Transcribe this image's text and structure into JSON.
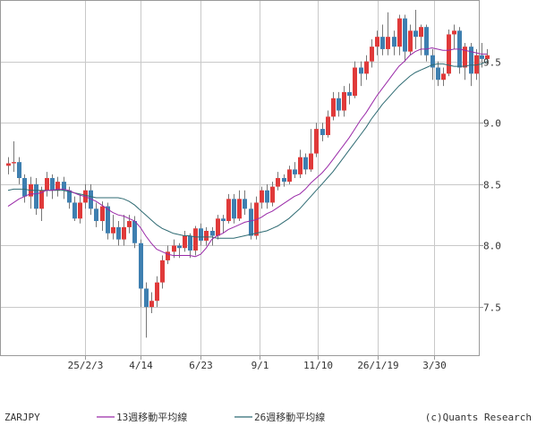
{
  "chart_data": {
    "type": "candlestick",
    "symbol": "ZARJPY",
    "source": "(c)Quants Research",
    "x_tick_labels": [
      "25/2/3",
      "4/14",
      "6/23",
      "9/1",
      "11/10",
      "26/1/19",
      "3/30"
    ],
    "y_ticks": [
      7.5,
      8.0,
      8.5,
      9.0,
      9.5
    ],
    "y_tick_labels": [
      "7.5",
      "8.0",
      "8.5",
      "9.0",
      "9.5"
    ],
    "ylim": [
      7.1,
      10.0
    ],
    "grid": true,
    "colors": {
      "up": "#e03a3a",
      "down": "#3e7fb0",
      "wick": "#777777",
      "ma13": "#9a2aa8",
      "ma26": "#2f6b73",
      "grid": "#c9c9c9",
      "axis": "#9a9a9a"
    },
    "legend": [
      {
        "label": "13週移動平均線",
        "color": "#9a2aa8"
      },
      {
        "label": "26週移動平均線",
        "color": "#2f6b73"
      }
    ],
    "candles": [
      [
        8.65,
        8.67,
        8.58,
        8.72
      ],
      [
        8.67,
        8.68,
        8.6,
        8.85
      ],
      [
        8.68,
        8.55,
        8.5,
        8.72
      ],
      [
        8.55,
        8.4,
        8.35,
        8.58
      ],
      [
        8.4,
        8.5,
        8.3,
        8.56
      ],
      [
        8.5,
        8.3,
        8.25,
        8.55
      ],
      [
        8.3,
        8.45,
        8.2,
        8.48
      ],
      [
        8.45,
        8.55,
        8.4,
        8.6
      ],
      [
        8.55,
        8.45,
        8.38,
        8.58
      ],
      [
        8.45,
        8.52,
        8.4,
        8.56
      ],
      [
        8.52,
        8.45,
        8.38,
        8.56
      ],
      [
        8.45,
        8.35,
        8.3,
        8.48
      ],
      [
        8.35,
        8.22,
        8.2,
        8.4
      ],
      [
        8.22,
        8.35,
        8.18,
        8.42
      ],
      [
        8.35,
        8.45,
        8.3,
        8.5
      ],
      [
        8.45,
        8.3,
        8.25,
        8.5
      ],
      [
        8.3,
        8.2,
        8.15,
        8.35
      ],
      [
        8.2,
        8.32,
        8.12,
        8.36
      ],
      [
        8.32,
        8.1,
        8.05,
        8.35
      ],
      [
        8.1,
        8.15,
        8.05,
        8.25
      ],
      [
        8.15,
        8.05,
        8.0,
        8.2
      ],
      [
        8.05,
        8.15,
        8.0,
        8.25
      ],
      [
        8.15,
        8.2,
        8.1,
        8.25
      ],
      [
        8.2,
        8.02,
        7.98,
        8.24
      ],
      [
        8.02,
        7.65,
        7.5,
        8.05
      ],
      [
        7.65,
        7.5,
        7.25,
        7.7
      ],
      [
        7.5,
        7.55,
        7.45,
        7.62
      ],
      [
        7.55,
        7.7,
        7.5,
        7.75
      ],
      [
        7.7,
        7.88,
        7.65,
        7.92
      ],
      [
        7.88,
        7.95,
        7.85,
        8.0
      ],
      [
        7.95,
        8.0,
        7.9,
        8.05
      ],
      [
        8.0,
        7.98,
        7.9,
        8.02
      ],
      [
        7.98,
        8.08,
        7.95,
        8.12
      ],
      [
        8.08,
        7.96,
        7.9,
        8.1
      ],
      [
        7.96,
        8.14,
        7.92,
        8.16
      ],
      [
        8.14,
        8.04,
        8.0,
        8.18
      ],
      [
        8.04,
        8.12,
        8.0,
        8.15
      ],
      [
        8.12,
        8.08,
        8.0,
        8.15
      ],
      [
        8.08,
        8.22,
        8.05,
        8.25
      ],
      [
        8.22,
        8.2,
        8.1,
        8.25
      ],
      [
        8.2,
        8.38,
        8.18,
        8.42
      ],
      [
        8.38,
        8.22,
        8.18,
        8.42
      ],
      [
        8.22,
        8.38,
        8.2,
        8.45
      ],
      [
        8.38,
        8.3,
        8.25,
        8.45
      ],
      [
        8.3,
        8.08,
        8.05,
        8.35
      ],
      [
        8.08,
        8.35,
        8.05,
        8.4
      ],
      [
        8.35,
        8.45,
        8.3,
        8.48
      ],
      [
        8.45,
        8.35,
        8.3,
        8.5
      ],
      [
        8.35,
        8.48,
        8.32,
        8.52
      ],
      [
        8.48,
        8.55,
        8.45,
        8.6
      ],
      [
        8.55,
        8.52,
        8.48,
        8.58
      ],
      [
        8.52,
        8.62,
        8.5,
        8.65
      ],
      [
        8.62,
        8.58,
        8.55,
        8.68
      ],
      [
        8.58,
        8.72,
        8.55,
        8.78
      ],
      [
        8.72,
        8.62,
        8.58,
        8.75
      ],
      [
        8.62,
        8.75,
        8.6,
        8.95
      ],
      [
        8.75,
        8.95,
        8.72,
        9.0
      ],
      [
        8.95,
        8.9,
        8.85,
        9.0
      ],
      [
        8.9,
        9.05,
        8.88,
        9.1
      ],
      [
        9.05,
        9.2,
        9.02,
        9.25
      ],
      [
        9.2,
        9.1,
        9.05,
        9.25
      ],
      [
        9.1,
        9.25,
        9.05,
        9.3
      ],
      [
        9.25,
        9.22,
        9.15,
        9.32
      ],
      [
        9.22,
        9.45,
        9.2,
        9.5
      ],
      [
        9.45,
        9.4,
        9.3,
        9.5
      ],
      [
        9.4,
        9.5,
        9.35,
        9.55
      ],
      [
        9.5,
        9.62,
        9.45,
        9.68
      ],
      [
        9.62,
        9.7,
        9.55,
        9.75
      ],
      [
        9.7,
        9.6,
        9.55,
        9.8
      ],
      [
        9.6,
        9.7,
        9.55,
        9.9
      ],
      [
        9.7,
        9.62,
        9.55,
        9.75
      ],
      [
        9.62,
        9.85,
        9.55,
        9.88
      ],
      [
        9.85,
        9.58,
        9.5,
        9.88
      ],
      [
        9.58,
        9.75,
        9.55,
        9.8
      ],
      [
        9.75,
        9.7,
        9.6,
        9.92
      ],
      [
        9.7,
        9.78,
        9.55,
        9.8
      ],
      [
        9.78,
        9.55,
        9.5,
        9.8
      ],
      [
        9.55,
        9.45,
        9.35,
        9.6
      ],
      [
        9.45,
        9.35,
        9.3,
        9.5
      ],
      [
        9.35,
        9.4,
        9.3,
        9.45
      ],
      [
        9.4,
        9.72,
        9.38,
        9.76
      ],
      [
        9.72,
        9.75,
        9.6,
        9.8
      ],
      [
        9.75,
        9.45,
        9.4,
        9.78
      ],
      [
        9.45,
        9.62,
        9.35,
        9.65
      ],
      [
        9.62,
        9.4,
        9.3,
        9.65
      ],
      [
        9.4,
        9.55,
        9.35,
        9.6
      ],
      [
        9.55,
        9.52,
        9.45,
        9.65
      ],
      [
        9.52,
        9.55,
        9.48,
        9.6
      ]
    ],
    "ma13": [
      8.32,
      8.35,
      8.38,
      8.4,
      8.42,
      8.42,
      8.43,
      8.45,
      8.45,
      8.46,
      8.46,
      8.45,
      8.43,
      8.41,
      8.4,
      8.38,
      8.36,
      8.33,
      8.3,
      8.27,
      8.25,
      8.24,
      8.22,
      8.2,
      8.15,
      8.08,
      8.02,
      7.97,
      7.95,
      7.93,
      7.92,
      7.92,
      7.92,
      7.92,
      7.91,
      7.93,
      7.98,
      8.05,
      8.08,
      8.1,
      8.13,
      8.15,
      8.17,
      8.19,
      8.2,
      8.21,
      8.23,
      8.26,
      8.28,
      8.31,
      8.34,
      8.37,
      8.4,
      8.42,
      8.46,
      8.51,
      8.55,
      8.59,
      8.64,
      8.7,
      8.76,
      8.82,
      8.88,
      8.95,
      9.02,
      9.08,
      9.15,
      9.22,
      9.28,
      9.34,
      9.4,
      9.46,
      9.5,
      9.55,
      9.58,
      9.6,
      9.6,
      9.61,
      9.6,
      9.59,
      9.59,
      9.6,
      9.6,
      9.59,
      9.58,
      9.57,
      9.56,
      9.56
    ],
    "ma26": [
      8.45,
      8.46,
      8.46,
      8.46,
      8.45,
      8.45,
      8.45,
      8.45,
      8.45,
      8.45,
      8.45,
      8.44,
      8.43,
      8.42,
      8.41,
      8.4,
      8.39,
      8.39,
      8.39,
      8.39,
      8.39,
      8.38,
      8.36,
      8.33,
      8.29,
      8.25,
      8.21,
      8.17,
      8.14,
      8.12,
      8.1,
      8.09,
      8.08,
      8.08,
      8.07,
      8.07,
      8.07,
      8.07,
      8.06,
      8.06,
      8.06,
      8.06,
      8.07,
      8.08,
      8.09,
      8.1,
      8.11,
      8.12,
      8.14,
      8.16,
      8.19,
      8.22,
      8.26,
      8.3,
      8.35,
      8.4,
      8.45,
      8.5,
      8.55,
      8.6,
      8.66,
      8.72,
      8.78,
      8.84,
      8.9,
      8.96,
      9.03,
      9.09,
      9.15,
      9.2,
      9.25,
      9.3,
      9.34,
      9.38,
      9.41,
      9.43,
      9.45,
      9.47,
      9.48,
      9.48,
      9.47,
      9.46,
      9.46,
      9.46,
      9.47,
      9.47,
      9.48,
      9.5
    ]
  }
}
